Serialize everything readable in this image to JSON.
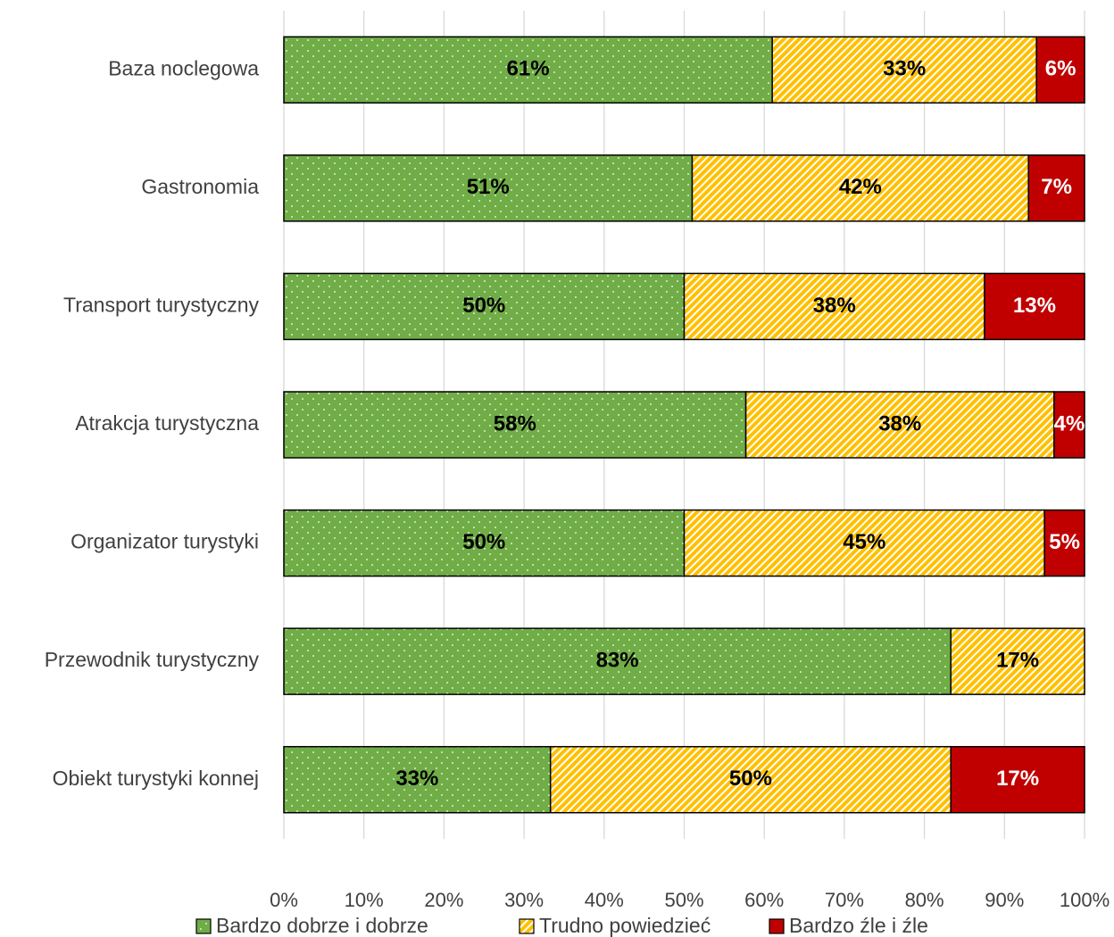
{
  "chart_data": {
    "type": "stacked_bar_horizontal",
    "categories": [
      "Baza noclegowa",
      "Gastronomia",
      "Transport turystyczny",
      "Atrakcja turystyczna",
      "Organizator turystyki",
      "Przewodnik turystyczny",
      "Obiekt turystyki konnej"
    ],
    "series": [
      {
        "name": "Bardzo dobrze i dobrze",
        "color": "#70ad47",
        "pattern": "dots",
        "label_color": "#000000",
        "values": [
          61,
          51,
          50,
          57.7,
          50,
          83.3,
          33.3
        ],
        "value_labels": [
          "61%",
          "51%",
          "50%",
          "58%",
          "50%",
          "83%",
          "33%"
        ]
      },
      {
        "name": "Trudno powiedzieć",
        "color": "#ffc000",
        "pattern": "hatch",
        "label_color": "#000000",
        "values": [
          33,
          42,
          37.5,
          38.5,
          45,
          16.7,
          50
        ],
        "value_labels": [
          "33%",
          "42%",
          "38%",
          "38%",
          "45%",
          "17%",
          "50%"
        ]
      },
      {
        "name": "Bardzo źle i źle",
        "color": "#c00000",
        "pattern": "solid",
        "label_color": "#ffffff",
        "values": [
          6,
          7,
          12.5,
          3.8,
          5,
          null,
          16.7
        ],
        "value_labels": [
          "6%",
          "7%",
          "13%",
          "4%",
          "5%",
          null,
          "17%"
        ]
      }
    ],
    "xlim": [
      0,
      100
    ],
    "xticks": [
      {
        "value": 0,
        "label": "0%"
      },
      {
        "value": 10,
        "label": "10%"
      },
      {
        "value": 20,
        "label": "20%"
      },
      {
        "value": 30,
        "label": "30%"
      },
      {
        "value": 40,
        "label": "40%"
      },
      {
        "value": 50,
        "label": "50%"
      },
      {
        "value": 60,
        "label": "60%"
      },
      {
        "value": 70,
        "label": "70%"
      },
      {
        "value": 80,
        "label": "80%"
      },
      {
        "value": 90,
        "label": "90%"
      },
      {
        "value": 100,
        "label": "100%"
      }
    ],
    "grid": true,
    "legend": "bottom"
  }
}
